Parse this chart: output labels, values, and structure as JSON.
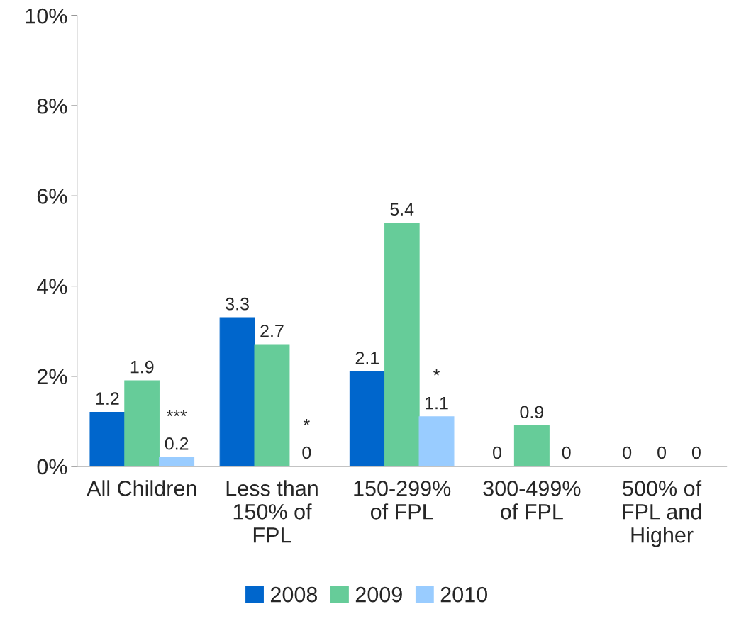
{
  "chart_data": {
    "type": "bar",
    "categories": [
      "All Children",
      "Less than\n150% of\nFPL",
      "150-299%\nof FPL",
      "300-499%\nof FPL",
      "500% of\nFPL and\nHigher"
    ],
    "series": [
      {
        "name": "2008",
        "color": "#0066cc",
        "values": [
          1.2,
          3.3,
          2.1,
          0,
          0
        ]
      },
      {
        "name": "2009",
        "color": "#66cc99",
        "values": [
          1.9,
          2.7,
          5.4,
          0.9,
          0
        ]
      },
      {
        "name": "2010",
        "color": "#99ccff",
        "values": [
          0.2,
          0,
          1.1,
          0,
          0
        ]
      }
    ],
    "ylim": [
      0,
      10
    ],
    "yticks": [
      {
        "value": 0,
        "label": "0%"
      },
      {
        "value": 2,
        "label": "2%"
      },
      {
        "value": 4,
        "label": "4%"
      },
      {
        "value": 6,
        "label": "6%"
      },
      {
        "value": 8,
        "label": "8%"
      },
      {
        "value": 10,
        "label": "10%"
      }
    ],
    "data_labels": true,
    "annotations": [
      "***",
      "*",
      "*"
    ],
    "grid": false,
    "legend": "bottom"
  }
}
